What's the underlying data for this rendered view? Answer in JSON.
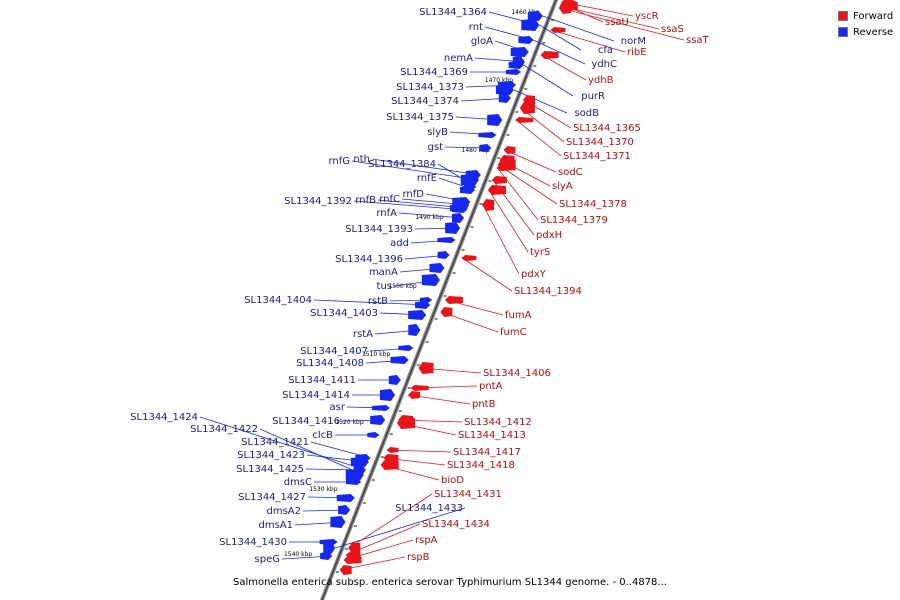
{
  "legend": {
    "forward_label": "Forward",
    "reverse_label": "Reverse",
    "forward_color": "#e8141a",
    "reverse_color": "#1428f0"
  },
  "caption": "Salmonella enterica subsp. enterica serovar Typhimurium SL1344 genome. - 0..4878...",
  "axis_ticks": [
    "1460 kbp",
    "1470 kbp",
    "1480 kbp",
    "1490 kbp",
    "1500 kbp",
    "1510 kbp",
    "1520 kbp",
    "1530 kbp",
    "1540 kbp"
  ],
  "reverse_genes": [
    "SL1344_1364",
    "rnt",
    "gloA",
    "nemA",
    "SL1344_1369",
    "SL1344_1373",
    "SL1344_1374",
    "SL1344_1375",
    "slyB",
    "gst",
    "nth",
    "rnfG",
    "SL1344_1384",
    "rnfE",
    "rnfD",
    "rnfC",
    "SL1344_1392",
    "rnfB",
    "rnfA",
    "SL1344_1393",
    "add",
    "SL1344_1396",
    "manA",
    "tus",
    "rstB",
    "SL1344_1404",
    "SL1344_1403",
    "rstA",
    "SL1344_1407",
    "SL1344_1408",
    "SL1344_1411",
    "SL1344_1414",
    "asr",
    "SL1344_1424",
    "SL1344_1416",
    "SL1344_1422",
    "clcB",
    "SL1344_1421",
    "SL1344_1423",
    "SL1344_1425",
    "dmsC",
    "SL1344_1427",
    "dmsA2",
    "dmsA1",
    "SL1344_1430",
    "speG",
    "norM",
    "cfa",
    "ydhC",
    "purR",
    "sodB",
    "SL1344_1433"
  ],
  "forward_genes": [
    "yscR",
    "ssaU",
    "ssaS",
    "ssaT",
    "ribE",
    "ydhB",
    "SL1344_1365",
    "SL1344_1370",
    "SL1344_1371",
    "sodC",
    "slyA",
    "SL1344_1378",
    "SL1344_1379",
    "pdxH",
    "tyrS",
    "pdxY",
    "SL1344_1394",
    "fumA",
    "fumC",
    "SL1344_1406",
    "pntA",
    "pntB",
    "SL1344_1412",
    "SL1344_1413",
    "SL1344_1417",
    "SL1344_1418",
    "bioD",
    "SL1344_1431",
    "SL1344_1434",
    "rspA",
    "rspB"
  ]
}
